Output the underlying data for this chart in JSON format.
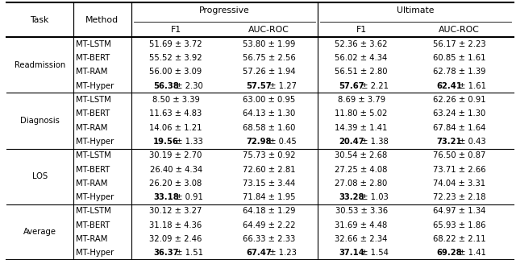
{
  "tasks": [
    "Readmission",
    "Diagnosis",
    "LOS",
    "Average"
  ],
  "methods": [
    "MT-LSTM",
    "MT-BERT",
    "MT-RAM",
    "MT-Hyper"
  ],
  "data": {
    "Readmission": {
      "MT-LSTM": [
        "51.69",
        "3.72",
        "53.80",
        "1.99",
        "52.36",
        "3.62",
        "56.17",
        "2.23"
      ],
      "MT-BERT": [
        "55.52",
        "3.92",
        "56.75",
        "2.56",
        "56.02",
        "4.34",
        "60.85",
        "1.61"
      ],
      "MT-RAM": [
        "56.00",
        "3.09",
        "57.26",
        "1.94",
        "56.51",
        "2.80",
        "62.78",
        "1.39"
      ],
      "MT-Hyper": [
        "56.38",
        "2.30",
        "57.57",
        "1.27",
        "57.67",
        "2.21",
        "62.41",
        "1.61"
      ]
    },
    "Diagnosis": {
      "MT-LSTM": [
        "8.50",
        "3.39",
        "63.00",
        "0.95",
        "8.69",
        "3.79",
        "62.26",
        "0.91"
      ],
      "MT-BERT": [
        "11.63",
        "4.83",
        "64.13",
        "1.30",
        "11.80",
        "5.02",
        "63.24",
        "1.30"
      ],
      "MT-RAM": [
        "14.06",
        "1.21",
        "68.58",
        "1.60",
        "14.39",
        "1.41",
        "67.84",
        "1.64"
      ],
      "MT-Hyper": [
        "19.56",
        "1.33",
        "72.98",
        "0.45",
        "20.47",
        "1.38",
        "73.21",
        "0.43"
      ]
    },
    "LOS": {
      "MT-LSTM": [
        "30.19",
        "2.70",
        "75.73",
        "0.92",
        "30.54",
        "2.68",
        "76.50",
        "0.87"
      ],
      "MT-BERT": [
        "26.40",
        "4.34",
        "72.60",
        "2.81",
        "27.25",
        "4.08",
        "73.71",
        "2.66"
      ],
      "MT-RAM": [
        "26.20",
        "3.08",
        "73.15",
        "3.44",
        "27.08",
        "2.80",
        "74.04",
        "3.31"
      ],
      "MT-Hyper": [
        "33.18",
        "0.91",
        "71.84",
        "1.95",
        "33.28",
        "1.03",
        "72.23",
        "2.18"
      ]
    },
    "Average": {
      "MT-LSTM": [
        "30.12",
        "3.27",
        "64.18",
        "1.29",
        "30.53",
        "3.36",
        "64.97",
        "1.34"
      ],
      "MT-BERT": [
        "31.18",
        "4.36",
        "64.49",
        "2.22",
        "31.69",
        "4.48",
        "65.93",
        "1.86"
      ],
      "MT-RAM": [
        "32.09",
        "2.46",
        "66.33",
        "2.33",
        "32.66",
        "2.34",
        "68.22",
        "2.11"
      ],
      "MT-Hyper": [
        "36.37",
        "1.51",
        "67.47",
        "1.23",
        "37.14",
        "1.54",
        "69.28",
        "1.41"
      ]
    }
  },
  "bold": {
    "Readmission": {
      "MT-Hyper": [
        0,
        1,
        2,
        3
      ]
    },
    "Diagnosis": {
      "MT-Hyper": [
        0,
        1,
        2,
        3
      ]
    },
    "LOS": {
      "MT-Hyper": [
        0,
        2
      ]
    },
    "Average": {
      "MT-Hyper": [
        0,
        1,
        2,
        3
      ]
    }
  },
  "background_color": "#ffffff",
  "line_color": "#000000",
  "font_size": 7.2,
  "header_font_size": 7.8
}
